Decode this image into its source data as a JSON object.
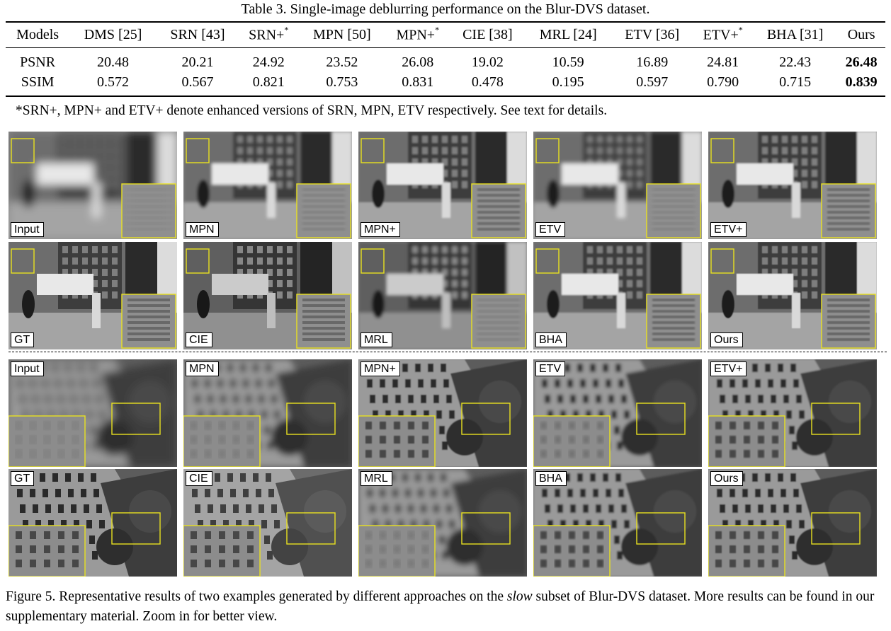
{
  "table": {
    "caption": "Table 3. Single-image deblurring performance on the Blur-DVS dataset.",
    "header": [
      "Models",
      "DMS [25]",
      "SRN [43]",
      "SRN+",
      "MPN [50]",
      "MPN+",
      "CIE [38]",
      "MRL [24]",
      "ETV [36]",
      "ETV+",
      "BHA [31]",
      "Ours"
    ],
    "header_sup": [
      "",
      "",
      "",
      "*",
      "",
      "*",
      "",
      "",
      "",
      "*",
      "",
      ""
    ],
    "rows": [
      {
        "metric": "PSNR",
        "values": [
          "20.48",
          "20.21",
          "24.92",
          "23.52",
          "26.08",
          "19.02",
          "10.59",
          "16.89",
          "24.81",
          "22.43",
          "26.48"
        ]
      },
      {
        "metric": "SSIM",
        "values": [
          "0.572",
          "0.567",
          "0.821",
          "0.753",
          "0.831",
          "0.478",
          "0.195",
          "0.597",
          "0.790",
          "0.715",
          "0.839"
        ]
      }
    ],
    "best_column": 10,
    "footnote": "*SRN+, MPN+ and ETV+ denote enhanced versions of SRN, MPN, ETV respectively. See text for details."
  },
  "figure": {
    "example1": {
      "row1": [
        "Input",
        "MPN",
        "MPN+",
        "ETV",
        "ETV+"
      ],
      "row2": [
        "GT",
        "CIE",
        "MRL",
        "BHA",
        "Ours"
      ]
    },
    "example2": {
      "row1": [
        "Input",
        "MPN",
        "MPN+",
        "ETV",
        "ETV+"
      ],
      "row2": [
        "GT",
        "CIE",
        "MRL",
        "BHA",
        "Ours"
      ]
    },
    "caption_before": "Figure 5. Representative results of two examples generated by different approaches on the ",
    "caption_italic": "slow",
    "caption_after": " subset of Blur-DVS dataset. More results can be found in our supplementary material. Zoom in for better view.",
    "highlight_color": "#e8e020"
  }
}
